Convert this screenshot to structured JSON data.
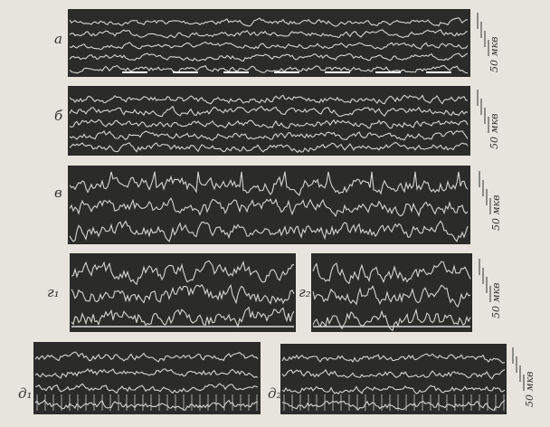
{
  "figure": {
    "panels": [
      {
        "label": "а"
      },
      {
        "label": "б"
      },
      {
        "label": "в"
      },
      {
        "label": "г₁"
      },
      {
        "label": "г₂"
      },
      {
        "label": "д₁"
      },
      {
        "label": "д₂"
      }
    ],
    "scales": [
      "50 мкв",
      "50 мкв",
      "50 мкв",
      "50 мкв",
      "50 мкв"
    ]
  }
}
